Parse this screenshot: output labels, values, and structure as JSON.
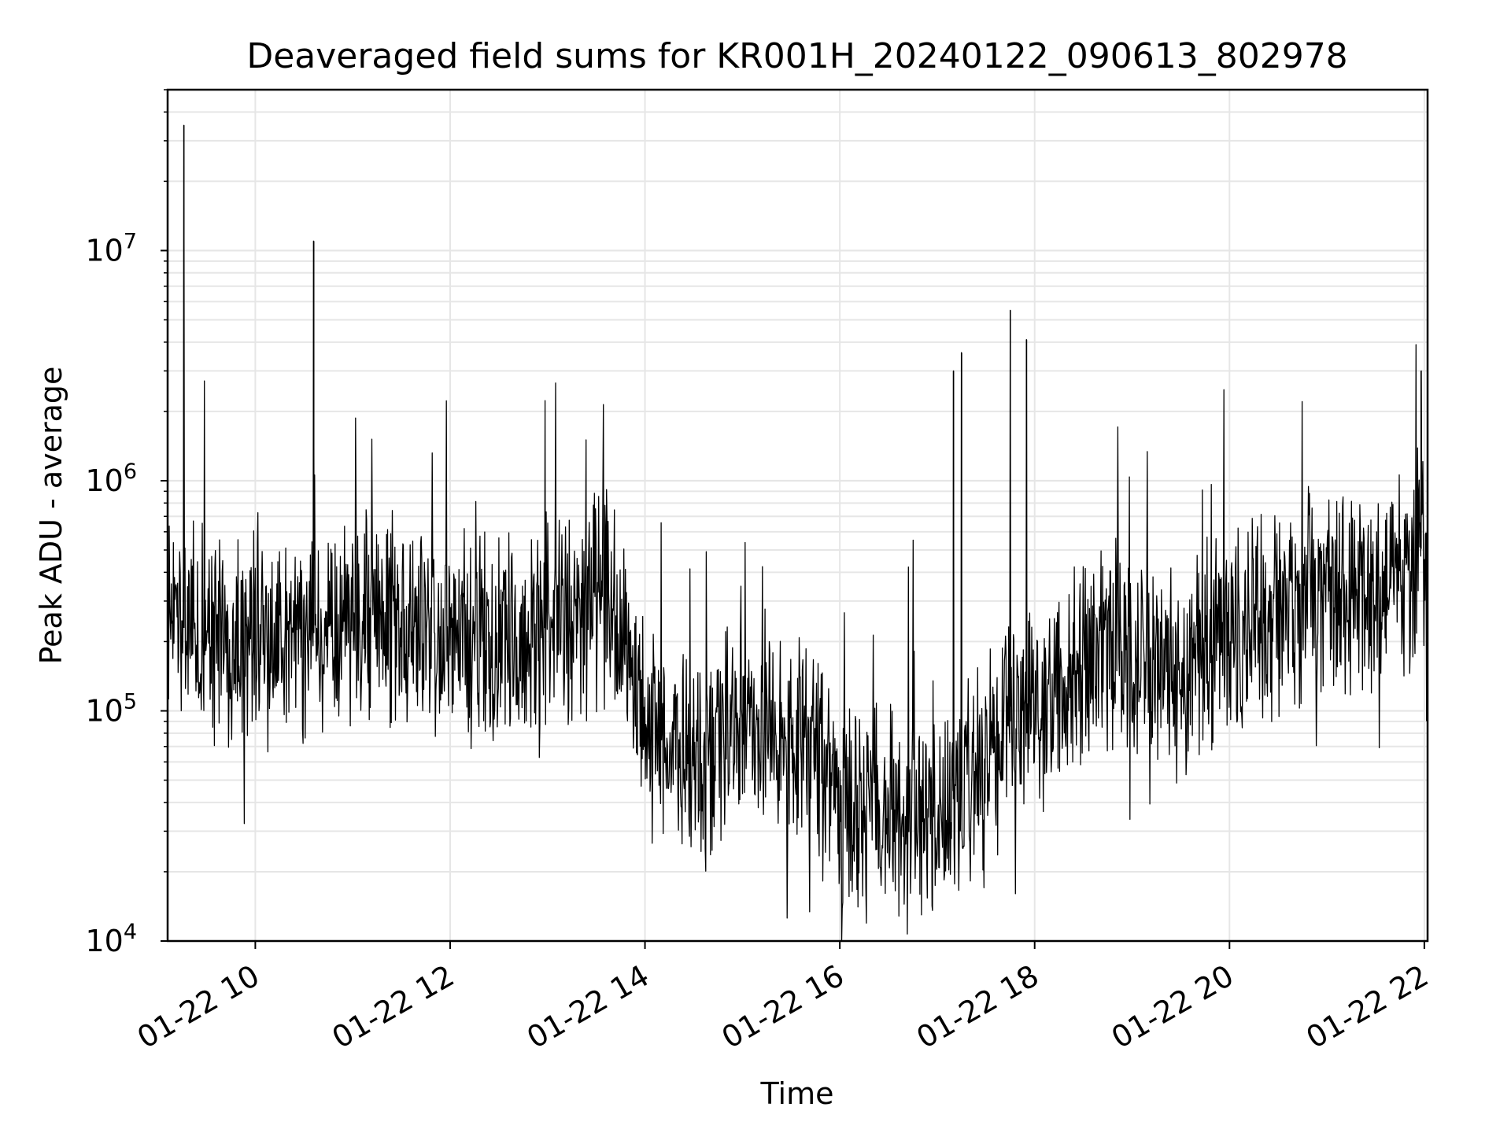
{
  "chart_data": {
    "type": "line",
    "title": "Deaveraged field sums for KR001H_20240122_090613_802978",
    "xlabel": "Time",
    "ylabel": "Peak ADU - average",
    "yscale": "log",
    "xlim": [
      "2024-01-22 09:06",
      "2024-01-22 22:02"
    ],
    "ylim": [
      10000,
      50000000
    ],
    "grid": true,
    "x_ticks": [
      {
        "value": "2024-01-22 10:00",
        "label": "01-22 10"
      },
      {
        "value": "2024-01-22 12:00",
        "label": "01-22 12"
      },
      {
        "value": "2024-01-22 14:00",
        "label": "01-22 14"
      },
      {
        "value": "2024-01-22 16:00",
        "label": "01-22 16"
      },
      {
        "value": "2024-01-22 18:00",
        "label": "01-22 18"
      },
      {
        "value": "2024-01-22 20:00",
        "label": "01-22 20"
      },
      {
        "value": "2024-01-22 22:00",
        "label": "01-22 22"
      }
    ],
    "y_ticks": [
      {
        "value": 10000,
        "base": "10",
        "exp": "4"
      },
      {
        "value": 100000,
        "base": "10",
        "exp": "5"
      },
      {
        "value": 1000000,
        "base": "10",
        "exp": "6"
      },
      {
        "value": 10000000,
        "base": "10",
        "exp": "7"
      }
    ],
    "line_color": "#000000",
    "series": [
      {
        "x": [
          "2024-01-22 09:06",
          "2024-01-22 09:15",
          "2024-01-22 09:30",
          "2024-01-22 09:45",
          "2024-01-22 10:00",
          "2024-01-22 10:15",
          "2024-01-22 10:30",
          "2024-01-22 10:45",
          "2024-01-22 11:00",
          "2024-01-22 11:15",
          "2024-01-22 11:30",
          "2024-01-22 11:45",
          "2024-01-22 12:00",
          "2024-01-22 12:15",
          "2024-01-22 12:30",
          "2024-01-22 12:45",
          "2024-01-22 13:00",
          "2024-01-22 13:15",
          "2024-01-22 13:30",
          "2024-01-22 13:40",
          "2024-01-22 13:50",
          "2024-01-22 14:00",
          "2024-01-22 14:15",
          "2024-01-22 14:30",
          "2024-01-22 14:45",
          "2024-01-22 15:00",
          "2024-01-22 15:15",
          "2024-01-22 15:30",
          "2024-01-22 15:45",
          "2024-01-22 16:00",
          "2024-01-22 16:15",
          "2024-01-22 16:30",
          "2024-01-22 16:45",
          "2024-01-22 17:00",
          "2024-01-22 17:15",
          "2024-01-22 17:30",
          "2024-01-22 17:45",
          "2024-01-22 18:00",
          "2024-01-22 18:15",
          "2024-01-22 18:30",
          "2024-01-22 18:45",
          "2024-01-22 19:00",
          "2024-01-22 19:15",
          "2024-01-22 19:30",
          "2024-01-22 19:45",
          "2024-01-22 20:00",
          "2024-01-22 20:15",
          "2024-01-22 20:30",
          "2024-01-22 20:45",
          "2024-01-22 21:00",
          "2024-01-22 21:15",
          "2024-01-22 21:30",
          "2024-01-22 21:45",
          "2024-01-22 22:00"
        ],
        "values": [
          250000,
          230000,
          220000,
          200000,
          190000,
          220000,
          210000,
          230000,
          240000,
          250000,
          230000,
          220000,
          210000,
          200000,
          190000,
          210000,
          220000,
          260000,
          300000,
          320000,
          150000,
          90000,
          75000,
          60000,
          70000,
          90000,
          80000,
          75000,
          60000,
          40000,
          37000,
          35000,
          32000,
          35000,
          45000,
          65000,
          90000,
          110000,
          130000,
          160000,
          200000,
          180000,
          160000,
          150000,
          170000,
          230000,
          260000,
          280000,
          300000,
          320000,
          330000,
          350000,
          420000,
          520000
        ]
      }
    ],
    "spikes": [
      {
        "x": "2024-01-22 09:16",
        "y": 35000000
      },
      {
        "x": "2024-01-22 10:36",
        "y": 11000000
      },
      {
        "x": "2024-01-22 17:10",
        "y": 3000000
      },
      {
        "x": "2024-01-22 17:15",
        "y": 3600000
      },
      {
        "x": "2024-01-22 17:45",
        "y": 5500000
      },
      {
        "x": "2024-01-22 17:55",
        "y": 4100000
      },
      {
        "x": "2024-01-22 21:58",
        "y": 3000000
      }
    ]
  }
}
